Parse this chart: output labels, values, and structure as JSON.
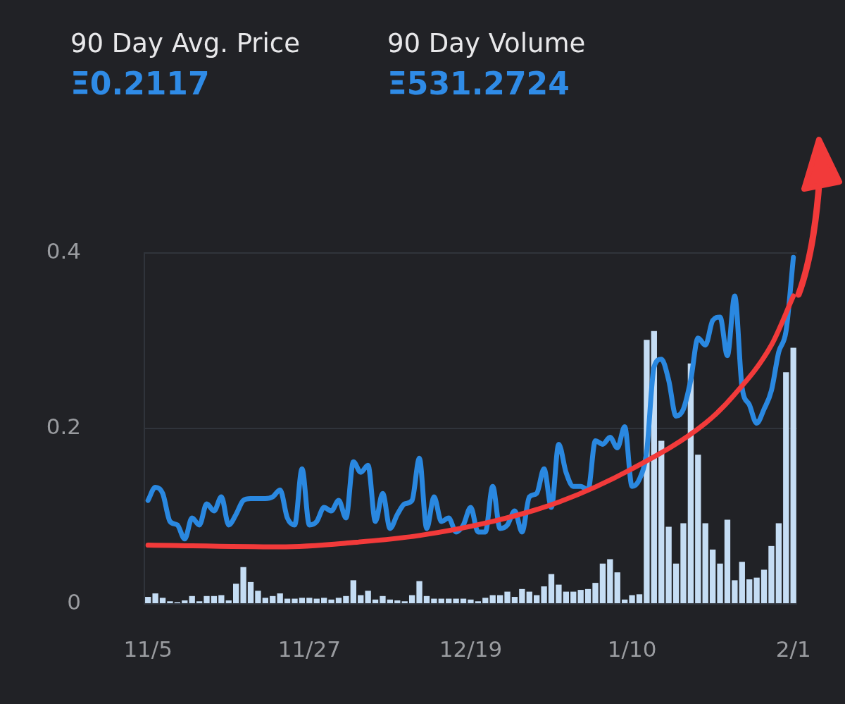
{
  "chart_data": {
    "type": "line",
    "annotations": [
      "90 Day Avg. Price",
      "Ξ0.2117",
      "90 Day Volume",
      "Ξ531.2724"
    ],
    "categories": [
      "11/5",
      null,
      null,
      null,
      null,
      null,
      null,
      null,
      null,
      null,
      null,
      null,
      null,
      null,
      null,
      null,
      null,
      null,
      null,
      null,
      null,
      null,
      "11/27",
      null,
      null,
      null,
      null,
      null,
      null,
      null,
      null,
      null,
      null,
      null,
      null,
      null,
      null,
      null,
      null,
      null,
      null,
      null,
      null,
      null,
      "12/19",
      null,
      null,
      null,
      null,
      null,
      null,
      null,
      null,
      null,
      null,
      null,
      null,
      null,
      null,
      null,
      null,
      null,
      null,
      null,
      null,
      null,
      "1/10",
      null,
      null,
      null,
      null,
      null,
      null,
      null,
      null,
      null,
      null,
      null,
      null,
      null,
      null,
      null,
      null,
      null,
      null,
      null,
      null,
      null,
      "2/1"
    ],
    "ylim": [
      0,
      0.4
    ],
    "yticks": [
      0,
      0.2,
      0.4
    ],
    "grid": "y",
    "series": [
      {
        "type": "bar",
        "color": "#c5ddf4",
        "values": [
          0.008,
          0.012,
          0.007,
          0.003,
          0.002,
          0.004,
          0.009,
          0.003,
          0.009,
          0.009,
          0.01,
          0.004,
          0.023,
          0.042,
          0.025,
          0.015,
          0.007,
          0.009,
          0.012,
          0.006,
          0.006,
          0.007,
          0.007,
          0.006,
          0.007,
          0.005,
          0.007,
          0.009,
          0.027,
          0.01,
          0.015,
          0.005,
          0.009,
          0.005,
          0.004,
          0.003,
          0.01,
          0.026,
          0.009,
          0.006,
          0.006,
          0.006,
          0.006,
          0.006,
          0.005,
          0.003,
          0.007,
          0.01,
          0.01,
          0.014,
          0.008,
          0.017,
          0.014,
          0.01,
          0.02,
          0.034,
          0.022,
          0.014,
          0.014,
          0.016,
          0.017,
          0.024,
          0.046,
          0.051,
          0.036,
          0.005,
          0.01,
          0.011,
          0.301,
          0.311,
          0.186,
          0.088,
          0.046,
          0.092,
          0.274,
          0.17,
          0.092,
          0.062,
          0.046,
          0.096,
          0.027,
          0.048,
          0.028,
          0.03,
          0.039,
          0.066,
          0.092,
          0.264,
          0.292
        ]
      },
      {
        "color": "#2a88e0",
        "values": [
          0.118,
          0.133,
          0.126,
          0.094,
          0.09,
          0.074,
          0.098,
          0.09,
          0.114,
          0.106,
          0.122,
          0.09,
          0.102,
          0.118,
          0.12,
          0.12,
          0.12,
          0.122,
          0.13,
          0.098,
          0.09,
          0.154,
          0.09,
          0.094,
          0.11,
          0.106,
          0.118,
          0.098,
          0.162,
          0.15,
          0.158,
          0.094,
          0.126,
          0.086,
          0.102,
          0.114,
          0.118,
          0.166,
          0.086,
          0.122,
          0.094,
          0.098,
          0.082,
          0.09,
          0.11,
          0.082,
          0.082,
          0.134,
          0.086,
          0.09,
          0.106,
          0.082,
          0.122,
          0.126,
          0.154,
          0.11,
          0.182,
          0.15,
          0.134,
          0.134,
          0.13,
          0.186,
          0.182,
          0.19,
          0.178,
          0.202,
          0.134,
          0.142,
          0.174,
          0.27,
          0.279,
          0.255,
          0.214,
          0.222,
          0.255,
          0.303,
          0.295,
          0.323,
          0.327,
          0.283,
          0.351,
          0.247,
          0.227,
          0.206,
          0.222,
          0.243,
          0.287,
          0.311,
          0.395
        ]
      },
      {
        "color": "#f23a3a",
        "values": [
          0.067,
          null,
          null,
          null,
          null,
          null,
          null,
          null,
          null,
          null,
          null,
          null,
          null,
          null,
          null,
          null,
          null,
          null,
          0.065,
          null,
          null,
          null,
          null,
          null,
          null,
          null,
          null,
          null,
          0.07,
          null,
          null,
          null,
          null,
          null,
          null,
          null,
          null,
          0.078,
          null,
          null,
          null,
          null,
          null,
          null,
          null,
          null,
          null,
          0.094,
          null,
          null,
          null,
          null,
          null,
          null,
          null,
          null,
          0.116,
          null,
          null,
          null,
          null,
          null,
          null,
          null,
          null,
          null,
          0.154,
          null,
          null,
          null,
          null,
          null,
          null,
          null,
          null,
          null,
          0.206,
          null,
          null,
          null,
          0.239,
          null,
          null,
          null,
          null,
          0.295,
          null,
          null,
          0.351
        ]
      }
    ]
  }
}
